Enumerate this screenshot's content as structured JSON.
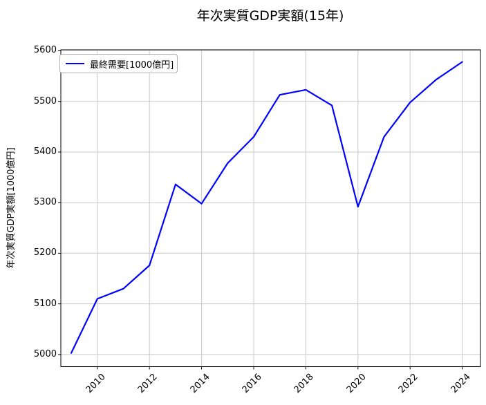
{
  "chart_data": {
    "type": "line",
    "title": "年次実質GDP実額(15年)",
    "xlabel": "",
    "ylabel": "年次実質GDP実額[1000億円]",
    "legend": {
      "position": "upper-left",
      "entries": [
        {
          "label": "最終需要[1000億円]",
          "color": "#0000ff"
        }
      ]
    },
    "x": [
      2009,
      2010,
      2011,
      2012,
      2013,
      2014,
      2015,
      2016,
      2017,
      2018,
      2019,
      2020,
      2021,
      2022,
      2023,
      2024
    ],
    "series": [
      {
        "name": "最終需要[1000億円]",
        "color": "#0000ff",
        "values": [
          5003,
          5110,
          5130,
          5176,
          5336,
          5298,
          5378,
          5430,
          5513,
          5523,
          5492,
          5292,
          5430,
          5498,
          5543,
          5578
        ]
      }
    ],
    "xticks": [
      2010,
      2012,
      2014,
      2016,
      2018,
      2020,
      2022,
      2024
    ],
    "yticks": [
      5000,
      5100,
      5200,
      5300,
      5400,
      5500,
      5600
    ],
    "xlim": [
      2008.6,
      2024.7
    ],
    "ylim": [
      4976,
      5602
    ],
    "grid": true,
    "x_tick_rotation_deg": 45,
    "colors": {
      "line": "#0000ff",
      "grid": "#c8c8c8",
      "axis": "#000000",
      "background": "#ffffff",
      "legend_border": "#b0b0b0",
      "text": "#000000"
    }
  }
}
